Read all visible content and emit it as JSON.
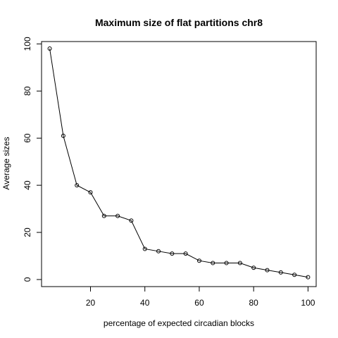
{
  "chart_data": {
    "type": "line",
    "title": "Maximum size of flat partitions chr8",
    "xlabel": "percentage of expected circadian blocks",
    "ylabel": "Average sizes",
    "x": [
      5,
      10,
      15,
      20,
      25,
      30,
      35,
      40,
      45,
      50,
      55,
      60,
      65,
      70,
      75,
      80,
      85,
      90,
      95,
      100
    ],
    "y": [
      98,
      61,
      40,
      37,
      27,
      27,
      25,
      13,
      12,
      11,
      11,
      8,
      7,
      7,
      7,
      5,
      4,
      3,
      2,
      1
    ],
    "xlim": [
      2,
      103
    ],
    "ylim": [
      -3,
      101
    ],
    "xticks": [
      20,
      40,
      60,
      80,
      100
    ],
    "yticks": [
      0,
      20,
      40,
      60,
      80,
      100
    ],
    "grid": false,
    "marker": "open-circle"
  }
}
